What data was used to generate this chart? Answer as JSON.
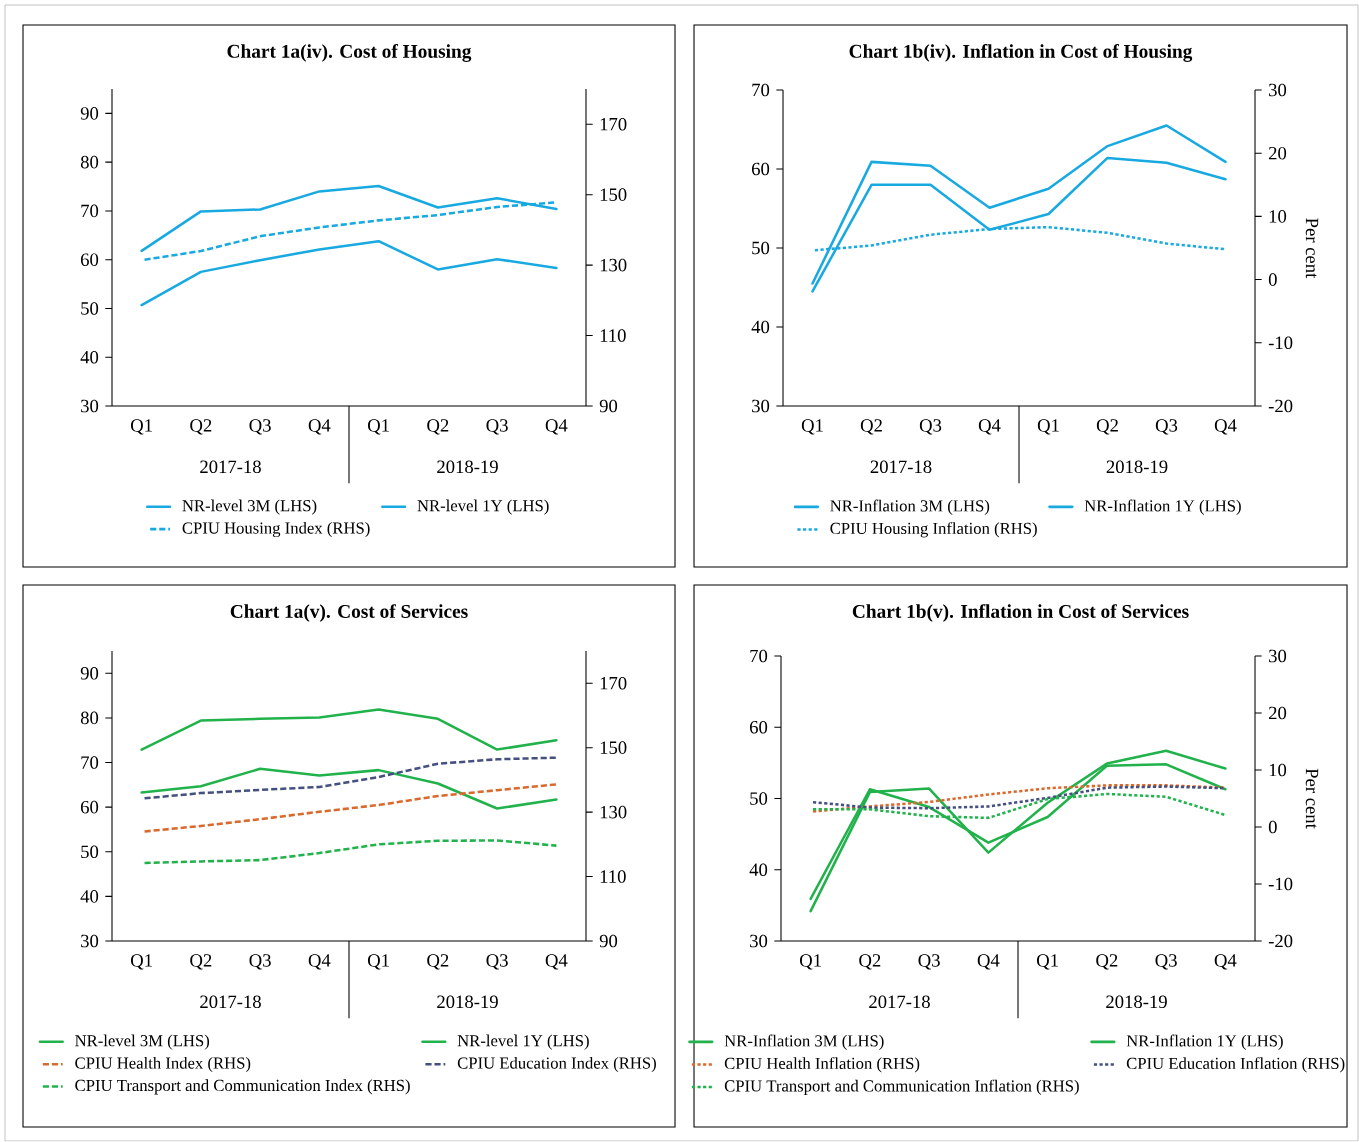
{
  "chart_data": [
    {
      "type": "line",
      "title": "Chart 1a(iv). Cost of Housing",
      "categories": [
        "Q1",
        "Q2",
        "Q3",
        "Q4",
        "Q1",
        "Q2",
        "Q3",
        "Q4"
      ],
      "annotations": [
        "2017-18",
        "2018-19"
      ],
      "ylim": [
        30,
        95
      ],
      "yticks": [
        30,
        40,
        50,
        60,
        70,
        80,
        90
      ],
      "y2lim": [
        90,
        180
      ],
      "y2ticks": [
        90,
        110,
        130,
        150,
        170
      ],
      "legend": "bottom",
      "series": [
        {
          "name": "NR-level 3M (LHS)",
          "color": "#19a9e1",
          "line_style": "solid",
          "values": [
            50.7,
            57.5,
            59.9,
            62.1,
            63.8,
            58.0,
            60.1,
            58.3
          ]
        },
        {
          "name": "NR-level 1Y (LHS)",
          "color": "#19a9e1",
          "line_style": "solid",
          "values": [
            61.8,
            69.9,
            70.3,
            74.0,
            75.1,
            70.7,
            72.6,
            70.4
          ]
        },
        {
          "name": "CPIU Housing Index (RHS)",
          "color": "#19a9e1",
          "line_style": "dashed",
          "axis": "y2",
          "values": [
            131.4,
            134.0,
            138.2,
            140.7,
            142.7,
            144.2,
            146.5,
            147.8
          ]
        }
      ]
    },
    {
      "type": "line",
      "title": "Chart 1b(iv). Inflation in Cost of Housing",
      "categories": [
        "Q1",
        "Q2",
        "Q3",
        "Q4",
        "Q1",
        "Q2",
        "Q3",
        "Q4"
      ],
      "annotations": [
        "2017-18",
        "2018-19"
      ],
      "ylim": [
        30,
        70
      ],
      "yticks": [
        30,
        40,
        50,
        60,
        70
      ],
      "y2lim": [
        -20,
        30
      ],
      "y2ticks": [
        -20,
        -10,
        0,
        10,
        20,
        30
      ],
      "y2label": "Per cent",
      "legend": "bottom",
      "series": [
        {
          "name": "NR-Inflation 3M (LHS)",
          "color": "#19a9e1",
          "line_style": "solid",
          "values": [
            44.5,
            58.0,
            58.0,
            52.3,
            54.3,
            61.4,
            60.8,
            58.7
          ]
        },
        {
          "name": "NR-Inflation 1Y (LHS)",
          "color": "#19a9e1",
          "line_style": "solid",
          "values": [
            45.5,
            60.9,
            60.4,
            55.1,
            57.5,
            62.9,
            65.5,
            60.9
          ]
        },
        {
          "name": "CPIU Housing Inflation (RHS)",
          "color": "#19a9e1",
          "line_style": "dotted",
          "axis": "y2",
          "values": [
            4.6,
            5.4,
            7.1,
            8.0,
            8.3,
            7.4,
            5.7,
            4.8
          ]
        }
      ]
    },
    {
      "type": "line",
      "title": "Chart 1a(v). Cost of Services",
      "categories": [
        "Q1",
        "Q2",
        "Q3",
        "Q4",
        "Q1",
        "Q2",
        "Q3",
        "Q4"
      ],
      "annotations": [
        "2017-18",
        "2018-19"
      ],
      "ylim": [
        30,
        95
      ],
      "yticks": [
        30,
        40,
        50,
        60,
        70,
        80,
        90
      ],
      "y2lim": [
        90,
        180
      ],
      "y2ticks": [
        90,
        110,
        130,
        150,
        170
      ],
      "legend": "bottom",
      "series": [
        {
          "name": "NR-level 3M (LHS)",
          "color": "#22b24c",
          "line_style": "solid",
          "values": [
            63.3,
            64.7,
            68.6,
            67.1,
            68.3,
            65.3,
            59.7,
            61.7
          ]
        },
        {
          "name": "NR-level 1Y (LHS)",
          "color": "#22b24c",
          "line_style": "solid",
          "values": [
            72.9,
            79.4,
            79.8,
            80.1,
            81.9,
            79.8,
            72.9,
            75.0
          ]
        },
        {
          "name": "CPIU Health Index (RHS)",
          "color": "#d9692c",
          "line_style": "dashed",
          "axis": "y2",
          "values": [
            123.9,
            125.7,
            127.8,
            130.1,
            132.2,
            135.0,
            136.8,
            138.6
          ]
        },
        {
          "name": "CPIU Education Index (RHS)",
          "color": "#44507f",
          "line_style": "dashed",
          "axis": "y2",
          "values": [
            134.2,
            135.9,
            136.9,
            137.8,
            140.9,
            145.0,
            146.4,
            146.9
          ]
        },
        {
          "name": "CPIU Transport and Communication Index (RHS)",
          "color": "#22b24c",
          "line_style": "dashed",
          "axis": "y2",
          "values": [
            114.2,
            114.7,
            115.1,
            117.3,
            120.0,
            121.1,
            121.2,
            119.6
          ]
        }
      ]
    },
    {
      "type": "line",
      "title": "Chart 1b(v). Inflation in Cost of Services",
      "categories": [
        "Q1",
        "Q2",
        "Q3",
        "Q4",
        "Q1",
        "Q2",
        "Q3",
        "Q4"
      ],
      "annotations": [
        "2017-18",
        "2018-19"
      ],
      "ylim": [
        30,
        70
      ],
      "yticks": [
        30,
        40,
        50,
        60,
        70
      ],
      "y2lim": [
        -20,
        30
      ],
      "y2ticks": [
        -20,
        -10,
        0,
        10,
        20,
        30
      ],
      "y2label": "Per cent",
      "legend": "bottom",
      "series": [
        {
          "name": "NR-Inflation 3M (LHS)",
          "color": "#22b24c",
          "line_style": "solid",
          "values": [
            35.9,
            51.3,
            48.8,
            43.8,
            47.4,
            54.6,
            54.8,
            51.3
          ]
        },
        {
          "name": "NR-Inflation 1Y (LHS)",
          "color": "#22b24c",
          "line_style": "solid",
          "values": [
            34.2,
            50.9,
            51.4,
            42.4,
            49.4,
            54.9,
            56.7,
            54.2
          ]
        },
        {
          "name": "CPIU Health Inflation (RHS)",
          "color": "#d9692c",
          "line_style": "dotted",
          "axis": "y2",
          "values": [
            2.7,
            3.6,
            4.4,
            5.7,
            6.8,
            7.3,
            7.3,
            6.9
          ]
        },
        {
          "name": "CPIU Education Inflation (RHS)",
          "color": "#44507f",
          "line_style": "dotted",
          "axis": "y2",
          "values": [
            4.4,
            3.4,
            3.3,
            3.6,
            5.1,
            6.9,
            7.1,
            6.8
          ]
        },
        {
          "name": "CPIU Transport and Communication Inflation (RHS)",
          "color": "#22b24c",
          "line_style": "dotted",
          "axis": "y2",
          "values": [
            3.1,
            3.1,
            1.9,
            1.6,
            4.9,
            5.8,
            5.3,
            2.1
          ]
        }
      ]
    }
  ]
}
